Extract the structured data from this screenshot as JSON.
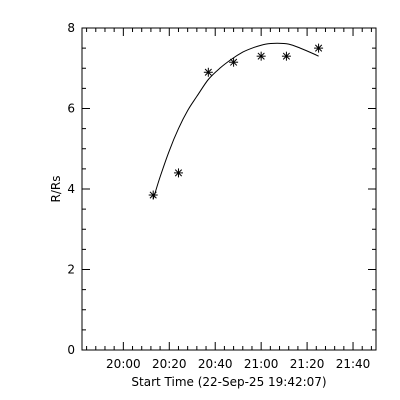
{
  "chart_data": {
    "type": "scatter",
    "xlabel": "Start Time (22-Sep-25 19:42:07)",
    "ylabel": "R/Rs",
    "x_tick_labels": [
      "20:00",
      "20:20",
      "20:40",
      "21:00",
      "21:20",
      "21:40"
    ],
    "y_tick_labels": [
      "0",
      "2",
      "4",
      "6",
      "8"
    ],
    "x_ticks_minutes": [
      18,
      38,
      58,
      78,
      98,
      118
    ],
    "y_ticks": [
      0,
      2,
      4,
      6,
      8
    ],
    "xlim_minutes": [
      0,
      128
    ],
    "ylim": [
      0,
      8
    ],
    "grid": false,
    "series": [
      {
        "kind": "points",
        "marker": "asterisk",
        "x_minutes": [
          31,
          42,
          55,
          66,
          78,
          89,
          103
        ],
        "y": [
          3.85,
          4.4,
          6.9,
          7.15,
          7.3,
          7.3,
          7.5
        ]
      },
      {
        "kind": "fit-line",
        "x_minutes": [
          31,
          34,
          38,
          42,
          46,
          50,
          55,
          60,
          65,
          70,
          75,
          80,
          85,
          90,
          95,
          100,
          103
        ],
        "y": [
          3.75,
          4.3,
          4.95,
          5.5,
          5.95,
          6.3,
          6.72,
          7.0,
          7.22,
          7.4,
          7.52,
          7.6,
          7.62,
          7.6,
          7.5,
          7.38,
          7.3
        ]
      }
    ]
  }
}
